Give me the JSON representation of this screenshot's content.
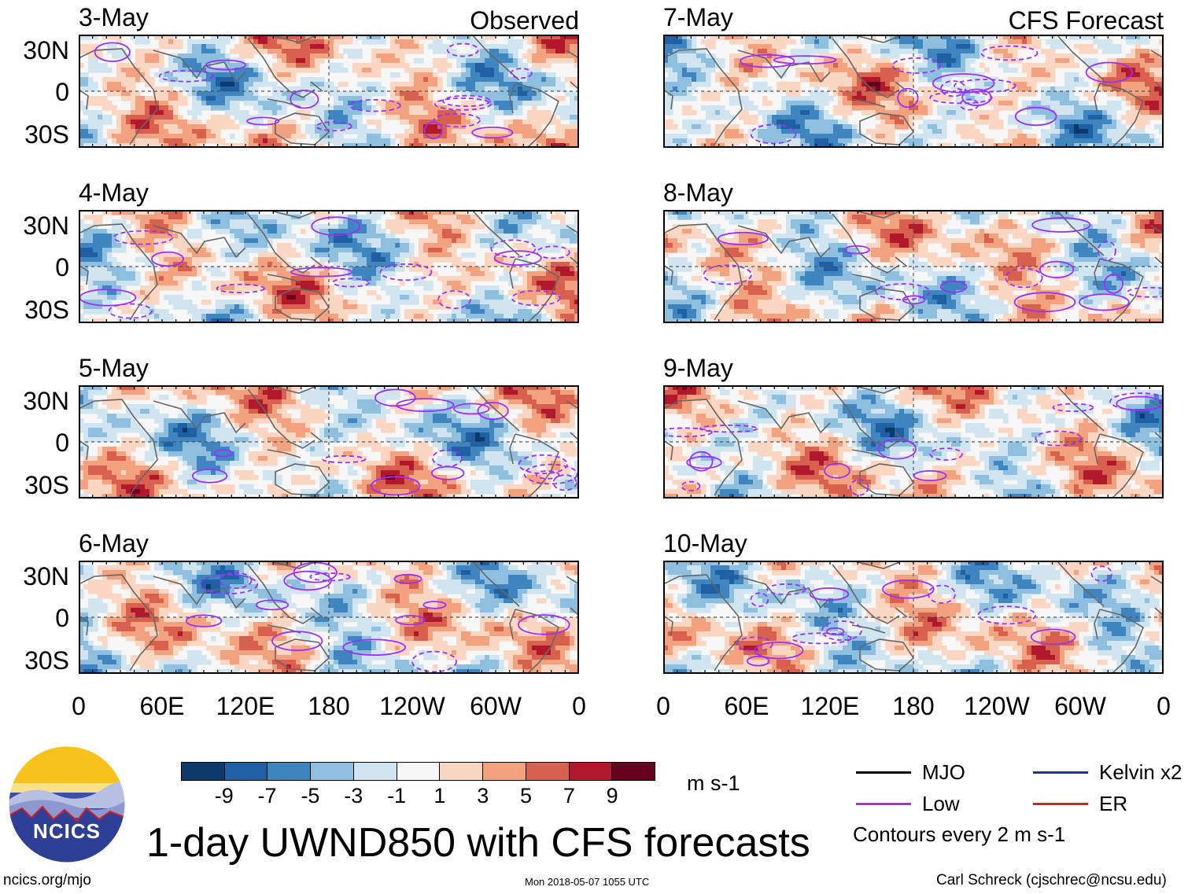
{
  "chart_data": {
    "type": "heatmap",
    "title": "1-day UWND850 with CFS forecasts",
    "variable": "850 hPa zonal wind (UWND850)",
    "units": "m s-1",
    "contour_note": "Contours every 2 m s-1",
    "lat_ticks": [
      "30N",
      "0",
      "30S"
    ],
    "lon_ticks": [
      "0",
      "60E",
      "120E",
      "180",
      "120W",
      "60W",
      "0"
    ],
    "lat_range": [
      -40,
      40
    ],
    "lon_range": [
      0,
      360
    ],
    "colorbar": {
      "labels": [
        "-9",
        "-7",
        "-5",
        "-3",
        "-1",
        "1",
        "3",
        "5",
        "7",
        "9"
      ],
      "colors": [
        "#0c3a6b",
        "#1f5fa3",
        "#3f86c0",
        "#8fbfde",
        "#d1e5f0",
        "#f7f7f7",
        "#fbd6c2",
        "#f2a27f",
        "#d8604e",
        "#b2182b",
        "#67001f"
      ],
      "units": "m s-1"
    },
    "columns": [
      {
        "type": "Observed",
        "panels": [
          {
            "date": "3-May",
            "seed": 11
          },
          {
            "date": "4-May",
            "seed": 23
          },
          {
            "date": "5-May",
            "seed": 37
          },
          {
            "date": "6-May",
            "seed": 49
          }
        ]
      },
      {
        "type": "CFS Forecast",
        "panels": [
          {
            "date": "7-May",
            "seed": 61
          },
          {
            "date": "8-May",
            "seed": 73
          },
          {
            "date": "9-May",
            "seed": 89
          },
          {
            "date": "10-May",
            "seed": 97
          }
        ]
      }
    ],
    "legend": [
      {
        "label": "MJO",
        "color": "#000000"
      },
      {
        "label": "Kelvin x2",
        "color": "#1f2fb0"
      },
      {
        "label": "Low",
        "color": "#9b30ff"
      },
      {
        "label": "ER",
        "color": "#e0201b"
      }
    ]
  },
  "logo": {
    "text": "NCICS"
  },
  "footer": {
    "url": "ncics.org/mjo",
    "timestamp": "Mon 2018-05-07 1055 UTC",
    "credit": "Carl Schreck (cjschrec@ncsu.edu)"
  }
}
